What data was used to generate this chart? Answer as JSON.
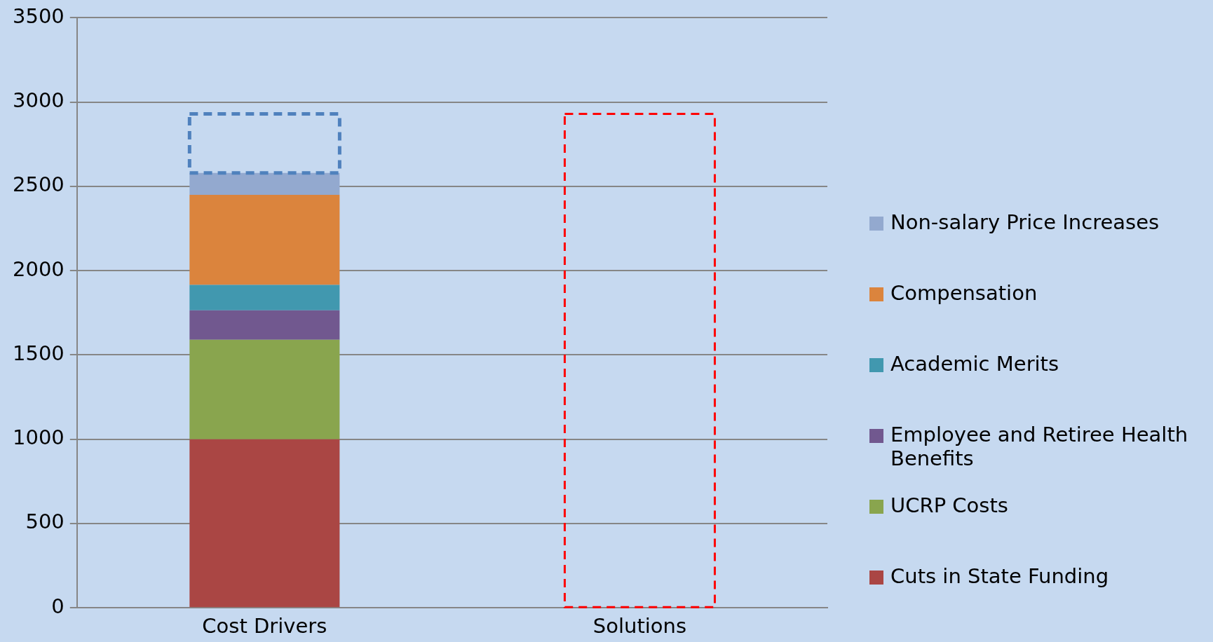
{
  "chart_data": {
    "type": "bar",
    "stacked": true,
    "categories": [
      "Cost Drivers",
      "Solutions"
    ],
    "ylim": [
      0,
      3500
    ],
    "yticks": [
      0,
      500,
      1000,
      1500,
      2000,
      2500,
      3000,
      3500
    ],
    "grid": "y",
    "legend": "right",
    "series": [
      {
        "name": "Cuts in State Funding",
        "color": "#aa4644",
        "values": [
          1000,
          null
        ]
      },
      {
        "name": "UCRP Costs",
        "color": "#89a54e",
        "values": [
          590,
          null
        ]
      },
      {
        "name": "Employee and Retiree Health Benefits",
        "color": "#71588f",
        "values": [
          175,
          null
        ]
      },
      {
        "name": "Academic Merits",
        "color": "#4198af",
        "values": [
          150,
          null
        ]
      },
      {
        "name": "Compensation",
        "color": "#db843d",
        "values": [
          535,
          null
        ]
      },
      {
        "name": "Non-salary Price Increases",
        "color": "#93a9cf",
        "values": [
          130,
          null
        ]
      },
      {
        "color": "#4f81bd",
        "line_style": "dashed",
        "values": [
          350,
          null
        ]
      },
      {
        "color": "#ff0000",
        "line_style": "dashed",
        "values": [
          null,
          2930
        ]
      }
    ]
  }
}
